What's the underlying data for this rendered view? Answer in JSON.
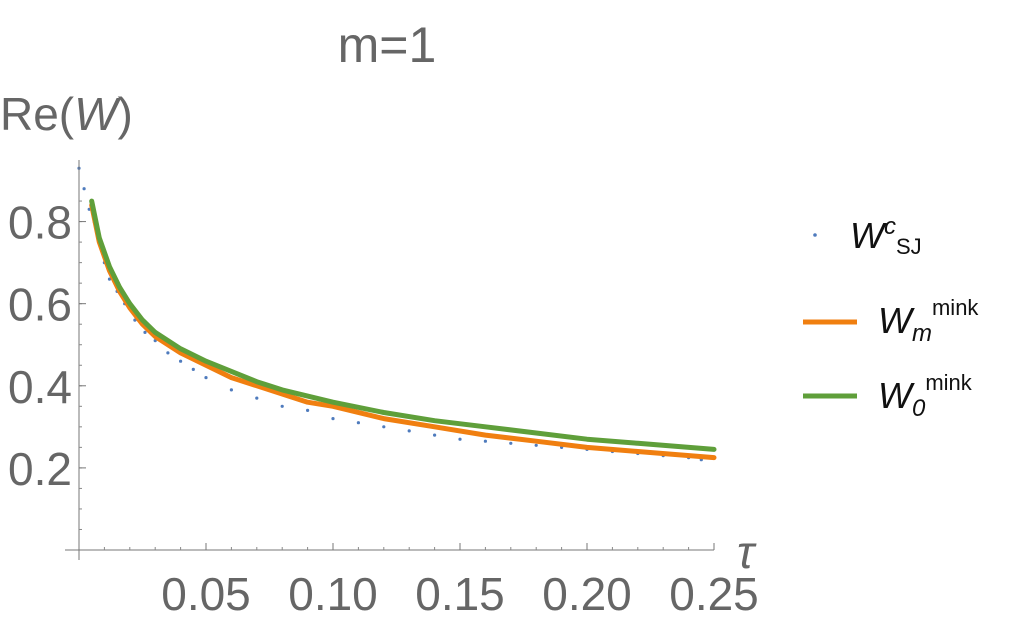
{
  "chart_data": {
    "type": "scatter",
    "title": "m=1",
    "ylabel": {
      "base": "Re(",
      "italic": "W",
      "close": ")"
    },
    "xlabel": "τ",
    "xlim": [
      0,
      0.25
    ],
    "ylim": [
      0,
      0.95
    ],
    "x_ticks": [
      {
        "value": 0.05,
        "label": "0.05"
      },
      {
        "value": 0.1,
        "label": "0.10"
      },
      {
        "value": 0.15,
        "label": "0.15"
      },
      {
        "value": 0.2,
        "label": "0.20"
      },
      {
        "value": 0.25,
        "label": "0.25"
      }
    ],
    "y_ticks": [
      {
        "value": 0.2,
        "label": "0.2"
      },
      {
        "value": 0.4,
        "label": "0.4"
      },
      {
        "value": 0.6,
        "label": "0.6"
      },
      {
        "value": 0.8,
        "label": "0.8"
      }
    ],
    "grid": false,
    "legend_position": "right",
    "series": [
      {
        "kind": "scatter",
        "color": "#4f7bbd",
        "legend": {
          "main": "W",
          "sup": "c",
          "sub": "SJ"
        },
        "x": [
          0.0,
          0.002,
          0.004,
          0.006,
          0.008,
          0.01,
          0.012,
          0.015,
          0.018,
          0.022,
          0.026,
          0.03,
          0.035,
          0.04,
          0.045,
          0.05,
          0.06,
          0.07,
          0.08,
          0.09,
          0.1,
          0.11,
          0.12,
          0.13,
          0.14,
          0.15,
          0.16,
          0.17,
          0.18,
          0.19,
          0.2,
          0.21,
          0.22,
          0.23,
          0.24,
          0.245
        ],
        "y": [
          0.93,
          0.88,
          0.83,
          0.8,
          0.75,
          0.7,
          0.66,
          0.63,
          0.6,
          0.56,
          0.53,
          0.51,
          0.48,
          0.46,
          0.44,
          0.42,
          0.39,
          0.37,
          0.35,
          0.34,
          0.32,
          0.31,
          0.3,
          0.29,
          0.28,
          0.27,
          0.265,
          0.26,
          0.255,
          0.25,
          0.245,
          0.24,
          0.235,
          0.23,
          0.225,
          0.22
        ]
      },
      {
        "kind": "line",
        "color": "#f07f10",
        "legend": {
          "main": "W",
          "sub": "m",
          "sup": "mink"
        },
        "x": [
          0.005,
          0.008,
          0.012,
          0.016,
          0.02,
          0.025,
          0.03,
          0.04,
          0.05,
          0.06,
          0.07,
          0.08,
          0.09,
          0.1,
          0.12,
          0.14,
          0.16,
          0.18,
          0.2,
          0.22,
          0.25
        ],
        "y": [
          0.84,
          0.75,
          0.68,
          0.63,
          0.59,
          0.55,
          0.52,
          0.48,
          0.45,
          0.42,
          0.4,
          0.38,
          0.36,
          0.35,
          0.32,
          0.3,
          0.28,
          0.265,
          0.25,
          0.24,
          0.225
        ]
      },
      {
        "kind": "line",
        "color": "#5f9f3a",
        "legend": {
          "main": "W",
          "sub": "0",
          "sup": "mink"
        },
        "x": [
          0.005,
          0.008,
          0.012,
          0.016,
          0.02,
          0.025,
          0.03,
          0.04,
          0.05,
          0.06,
          0.07,
          0.08,
          0.09,
          0.1,
          0.12,
          0.14,
          0.16,
          0.18,
          0.2,
          0.22,
          0.25
        ],
        "y": [
          0.85,
          0.76,
          0.69,
          0.64,
          0.6,
          0.56,
          0.53,
          0.49,
          0.46,
          0.435,
          0.41,
          0.39,
          0.375,
          0.36,
          0.335,
          0.315,
          0.3,
          0.285,
          0.27,
          0.26,
          0.245
        ]
      }
    ]
  }
}
